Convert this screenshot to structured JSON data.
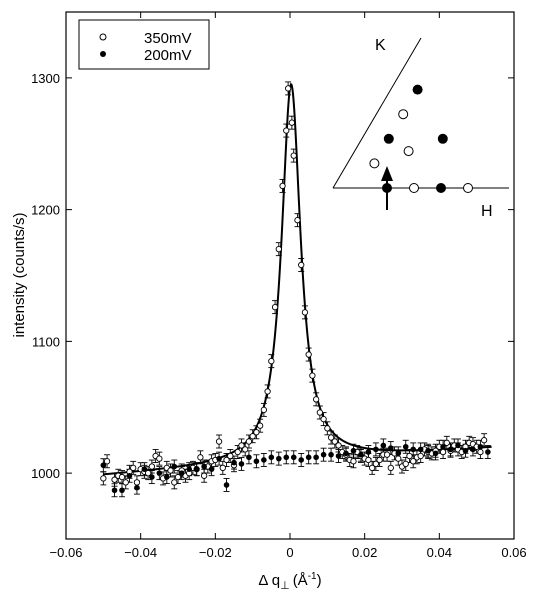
{
  "chart_data": {
    "type": "scatter",
    "xlabel_prefix": "Δ q",
    "xlabel_sub": "⊥",
    "xlabel_unit": "(Å",
    "xlabel_exp": "-1",
    "xlabel_close": ")",
    "ylabel": "intensity (counts/s)",
    "xlim": [
      -0.06,
      0.06
    ],
    "ylim": [
      950,
      1350
    ],
    "x_ticks": [
      -0.06,
      -0.04,
      -0.02,
      0,
      0.02,
      0.04,
      0.06
    ],
    "x_tick_labels": [
      "−0.06",
      "−0.04",
      "−0.02",
      "0",
      "0.02",
      "0.04",
      "0.06"
    ],
    "y_ticks": [
      1000,
      1100,
      1200,
      1300
    ],
    "y_tick_labels": [
      "1000",
      "1100",
      "1200",
      "1300"
    ],
    "grid": false,
    "legend_position": "top-left",
    "series": [
      {
        "name": "350mV",
        "marker": "open-circle",
        "points": [
          [
            -0.05,
            996
          ],
          [
            -0.049,
            1009
          ],
          [
            -0.047,
            995
          ],
          [
            -0.046,
            998
          ],
          [
            -0.045,
            997
          ],
          [
            -0.044,
            993
          ],
          [
            -0.043,
            1001
          ],
          [
            -0.042,
            1004
          ],
          [
            -0.041,
            993
          ],
          [
            -0.04,
            1003
          ],
          [
            -0.039,
            1001
          ],
          [
            -0.038,
            1000
          ],
          [
            -0.037,
            1005
          ],
          [
            -0.036,
            1013
          ],
          [
            -0.035,
            1011
          ],
          [
            -0.034,
            996
          ],
          [
            -0.033,
            1004
          ],
          [
            -0.032,
            1002
          ],
          [
            -0.031,
            993
          ],
          [
            -0.03,
            997
          ],
          [
            -0.029,
            1002
          ],
          [
            -0.028,
            998
          ],
          [
            -0.027,
            1000
          ],
          [
            -0.026,
            1004
          ],
          [
            -0.025,
            1003
          ],
          [
            -0.024,
            1012
          ],
          [
            -0.023,
            998
          ],
          [
            -0.022,
            1005
          ],
          [
            -0.021,
            1009
          ],
          [
            -0.02,
            1010
          ],
          [
            -0.019,
            1024
          ],
          [
            -0.018,
            1004
          ],
          [
            -0.017,
            1010
          ],
          [
            -0.016,
            1013
          ],
          [
            -0.015,
            1006
          ],
          [
            -0.014,
            1016
          ],
          [
            -0.013,
            1021
          ],
          [
            -0.012,
            1018
          ],
          [
            -0.011,
            1024
          ],
          [
            -0.01,
            1028
          ],
          [
            -0.009,
            1031
          ],
          [
            -0.008,
            1036
          ],
          [
            -0.007,
            1048
          ],
          [
            -0.006,
            1062
          ],
          [
            -0.005,
            1085
          ],
          [
            -0.004,
            1126
          ],
          [
            -0.003,
            1170
          ],
          [
            -0.002,
            1218
          ],
          [
            -0.001,
            1260
          ],
          [
            -0.0005,
            1292
          ],
          [
            0.0005,
            1266
          ],
          [
            0.001,
            1241
          ],
          [
            0.002,
            1192
          ],
          [
            0.003,
            1158
          ],
          [
            0.004,
            1122
          ],
          [
            0.005,
            1090
          ],
          [
            0.006,
            1074
          ],
          [
            0.007,
            1056
          ],
          [
            0.008,
            1046
          ],
          [
            0.009,
            1041
          ],
          [
            0.01,
            1034
          ],
          [
            0.011,
            1027
          ],
          [
            0.012,
            1024
          ],
          [
            0.013,
            1021
          ],
          [
            0.014,
            1016
          ],
          [
            0.015,
            1014
          ],
          [
            0.016,
            1010
          ],
          [
            0.017,
            1009
          ],
          [
            0.018,
            1016
          ],
          [
            0.019,
            1013
          ],
          [
            0.02,
            1011
          ],
          [
            0.021,
            1010
          ],
          [
            0.022,
            1004
          ],
          [
            0.023,
            1007
          ],
          [
            0.024,
            1010
          ],
          [
            0.025,
            1014
          ],
          [
            0.026,
            1014
          ],
          [
            0.027,
            1004
          ],
          [
            0.028,
            1015
          ],
          [
            0.029,
            1011
          ],
          [
            0.03,
            1005
          ],
          [
            0.031,
            1007
          ],
          [
            0.032,
            1013
          ],
          [
            0.033,
            1009
          ],
          [
            0.034,
            1012
          ],
          [
            0.035,
            1013
          ],
          [
            0.036,
            1018
          ],
          [
            0.037,
            1016
          ],
          [
            0.038,
            1015
          ],
          [
            0.039,
            1017
          ],
          [
            0.04,
            1020
          ],
          [
            0.041,
            1016
          ],
          [
            0.042,
            1023
          ],
          [
            0.043,
            1017
          ],
          [
            0.044,
            1021
          ],
          [
            0.045,
            1018
          ],
          [
            0.046,
            1016
          ],
          [
            0.047,
            1020
          ],
          [
            0.048,
            1023
          ],
          [
            0.049,
            1022
          ],
          [
            0.05,
            1020
          ],
          [
            0.051,
            1016
          ],
          [
            0.052,
            1025
          ]
        ]
      },
      {
        "name": "200mV",
        "marker": "filled-circle",
        "points": [
          [
            -0.05,
            1006
          ],
          [
            -0.047,
            987
          ],
          [
            -0.045,
            987
          ],
          [
            -0.043,
            998
          ],
          [
            -0.041,
            989
          ],
          [
            -0.039,
            1003
          ],
          [
            -0.037,
            997
          ],
          [
            -0.035,
            1000
          ],
          [
            -0.033,
            997
          ],
          [
            -0.031,
            1005
          ],
          [
            -0.029,
            1000
          ],
          [
            -0.027,
            1003
          ],
          [
            -0.025,
            1003
          ],
          [
            -0.023,
            1005
          ],
          [
            -0.021,
            1003
          ],
          [
            -0.019,
            1011
          ],
          [
            -0.017,
            991
          ],
          [
            -0.015,
            1008
          ],
          [
            -0.013,
            1007
          ],
          [
            -0.011,
            1012
          ],
          [
            -0.009,
            1009
          ],
          [
            -0.007,
            1010
          ],
          [
            -0.005,
            1012
          ],
          [
            -0.003,
            1011
          ],
          [
            -0.001,
            1012
          ],
          [
            0.001,
            1012
          ],
          [
            0.003,
            1010
          ],
          [
            0.005,
            1012
          ],
          [
            0.007,
            1012
          ],
          [
            0.009,
            1014
          ],
          [
            0.011,
            1014
          ],
          [
            0.013,
            1013
          ],
          [
            0.015,
            1015
          ],
          [
            0.017,
            1017
          ],
          [
            0.019,
            1014
          ],
          [
            0.021,
            1016
          ],
          [
            0.023,
            1018
          ],
          [
            0.025,
            1021
          ],
          [
            0.027,
            1019
          ],
          [
            0.029,
            1015
          ],
          [
            0.031,
            1020
          ],
          [
            0.033,
            1018
          ],
          [
            0.035,
            1018
          ],
          [
            0.037,
            1017
          ],
          [
            0.039,
            1015
          ],
          [
            0.041,
            1020
          ],
          [
            0.043,
            1018
          ],
          [
            0.045,
            1021
          ],
          [
            0.047,
            1017
          ],
          [
            0.049,
            1018
          ],
          [
            0.051,
            1020
          ],
          [
            0.053,
            1016
          ]
        ]
      }
    ],
    "fit": {
      "type": "lorentzian",
      "x0": 0.0003,
      "gamma": 0.0031,
      "amplitude": 287,
      "baseline_at_xmin": 998,
      "baseline_at_xmax": 1019,
      "x_range": [
        -0.05,
        0.054
      ]
    },
    "inset": {
      "labels": {
        "k": "K",
        "h": "H"
      },
      "open_points": [
        {
          "h": 0.0,
          "k": 1
        },
        {
          "h": 0.0,
          "k": 3
        },
        {
          "h": 1.0,
          "k": 0
        },
        {
          "h": 2.0,
          "k": 0
        },
        {
          "h": 0.5,
          "k": 1.5
        }
      ],
      "filled_points": [
        {
          "h": 0.5,
          "k": 0
        },
        {
          "h": 1.5,
          "k": 0
        },
        {
          "h": 0.0,
          "k": 2
        },
        {
          "h": 1.0,
          "k": 2
        },
        {
          "h": 0.0,
          "k": 4
        }
      ],
      "arrow_at": {
        "h": 0.0,
        "k": 1
      }
    }
  }
}
